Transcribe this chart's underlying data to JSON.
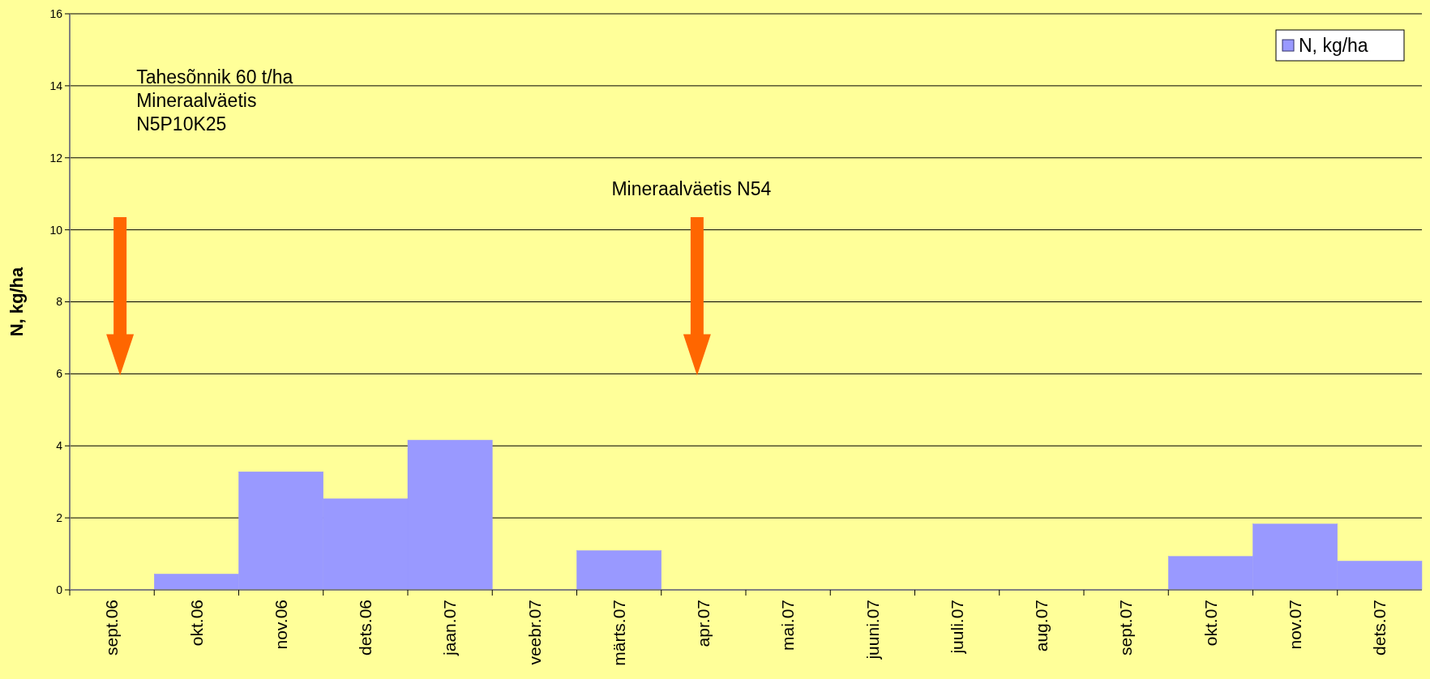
{
  "chart_data": {
    "type": "bar",
    "ylabel": "N, kg/ha",
    "categories": [
      "sept.06",
      "okt.06",
      "nov.06",
      "dets.06",
      "jaan.07",
      "veebr.07",
      "märts.07",
      "apr.07",
      "mai.07",
      "juuni.07",
      "juuli.07",
      "aug.07",
      "sept.07",
      "okt.07",
      "nov.07",
      "dets.07"
    ],
    "series": [
      {
        "name": "N, kg/ha",
        "color": "#9999ff",
        "values": [
          0,
          0.44,
          3.28,
          2.53,
          4.16,
          0,
          1.09,
          0,
          0,
          0,
          0,
          0,
          0,
          0.93,
          1.83,
          0.8
        ]
      }
    ],
    "ylim": [
      0,
      16
    ],
    "yticks": [
      0,
      2,
      4,
      6,
      8,
      10,
      12,
      14,
      16
    ],
    "grid": "y",
    "legend": "top right",
    "annotations": [
      "Tahesõnnik 60 t/ha\nMineraalväetis\nN5P10K25",
      "Mineraalväetis N54"
    ]
  }
}
